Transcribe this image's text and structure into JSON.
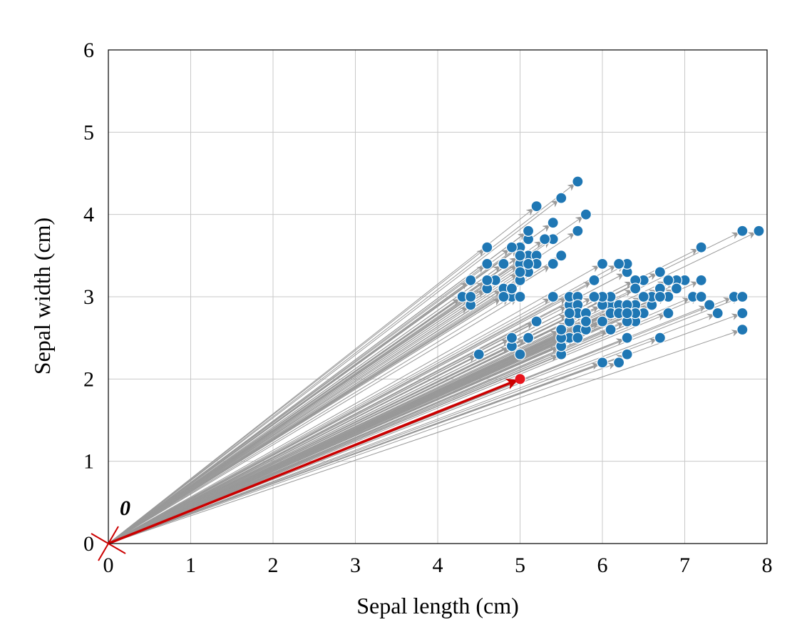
{
  "chart_data": {
    "type": "scatter",
    "xlabel": "Sepal length (cm)",
    "ylabel": "Sepal width (cm)",
    "xlim": [
      0,
      8
    ],
    "ylim": [
      0,
      6
    ],
    "xticks": [
      "0",
      "1",
      "2",
      "3",
      "4",
      "5",
      "6",
      "7",
      "8"
    ],
    "yticks": [
      "0",
      "1",
      "2",
      "3",
      "4",
      "5",
      "6"
    ],
    "grid": true,
    "origin_label": "0",
    "origin_marker": "x",
    "arrow_color": "#999999",
    "point_color": "#1f77b4",
    "highlight_color": "#cc0000",
    "highlight": {
      "x": 5.0,
      "y": 2.0
    },
    "points": [
      [
        5.1,
        3.5
      ],
      [
        4.9,
        3.0
      ],
      [
        4.7,
        3.2
      ],
      [
        4.6,
        3.1
      ],
      [
        5.0,
        3.6
      ],
      [
        5.4,
        3.9
      ],
      [
        4.6,
        3.4
      ],
      [
        5.0,
        3.4
      ],
      [
        4.4,
        2.9
      ],
      [
        4.9,
        3.1
      ],
      [
        5.4,
        3.7
      ],
      [
        4.8,
        3.4
      ],
      [
        4.8,
        3.0
      ],
      [
        4.3,
        3.0
      ],
      [
        5.8,
        4.0
      ],
      [
        5.7,
        4.4
      ],
      [
        5.4,
        3.9
      ],
      [
        5.1,
        3.5
      ],
      [
        5.7,
        3.8
      ],
      [
        5.1,
        3.8
      ],
      [
        5.4,
        3.4
      ],
      [
        5.1,
        3.7
      ],
      [
        4.6,
        3.6
      ],
      [
        5.1,
        3.3
      ],
      [
        4.8,
        3.4
      ],
      [
        5.0,
        3.0
      ],
      [
        5.0,
        3.4
      ],
      [
        5.2,
        3.5
      ],
      [
        5.2,
        3.4
      ],
      [
        4.7,
        3.2
      ],
      [
        4.8,
        3.1
      ],
      [
        5.4,
        3.4
      ],
      [
        5.2,
        4.1
      ],
      [
        5.5,
        4.2
      ],
      [
        4.9,
        3.1
      ],
      [
        5.0,
        3.2
      ],
      [
        5.5,
        3.5
      ],
      [
        4.9,
        3.6
      ],
      [
        4.4,
        3.0
      ],
      [
        5.1,
        3.4
      ],
      [
        5.0,
        3.5
      ],
      [
        4.5,
        2.3
      ],
      [
        4.4,
        3.2
      ],
      [
        5.0,
        3.5
      ],
      [
        5.1,
        3.8
      ],
      [
        4.8,
        3.0
      ],
      [
        5.1,
        3.8
      ],
      [
        4.6,
        3.2
      ],
      [
        5.3,
        3.7
      ],
      [
        5.0,
        3.3
      ],
      [
        7.0,
        3.2
      ],
      [
        6.4,
        3.2
      ],
      [
        6.9,
        3.1
      ],
      [
        5.5,
        2.3
      ],
      [
        6.5,
        2.8
      ],
      [
        5.7,
        2.8
      ],
      [
        6.3,
        3.3
      ],
      [
        4.9,
        2.4
      ],
      [
        6.6,
        2.9
      ],
      [
        5.2,
        2.7
      ],
      [
        5.0,
        2.0
      ],
      [
        5.9,
        3.0
      ],
      [
        6.0,
        2.2
      ],
      [
        6.1,
        2.9
      ],
      [
        5.6,
        2.9
      ],
      [
        6.7,
        3.1
      ],
      [
        5.6,
        3.0
      ],
      [
        5.8,
        2.7
      ],
      [
        6.2,
        2.2
      ],
      [
        5.6,
        2.5
      ],
      [
        5.9,
        3.2
      ],
      [
        6.1,
        2.8
      ],
      [
        6.3,
        2.5
      ],
      [
        6.1,
        2.8
      ],
      [
        6.4,
        2.9
      ],
      [
        6.6,
        3.0
      ],
      [
        6.8,
        2.8
      ],
      [
        6.7,
        3.0
      ],
      [
        6.0,
        2.9
      ],
      [
        5.7,
        2.6
      ],
      [
        5.5,
        2.4
      ],
      [
        5.5,
        2.4
      ],
      [
        5.8,
        2.7
      ],
      [
        6.0,
        2.7
      ],
      [
        5.4,
        3.0
      ],
      [
        6.0,
        3.4
      ],
      [
        6.7,
        3.1
      ],
      [
        6.3,
        2.3
      ],
      [
        5.6,
        3.0
      ],
      [
        5.5,
        2.5
      ],
      [
        5.5,
        2.6
      ],
      [
        6.1,
        3.0
      ],
      [
        5.8,
        2.6
      ],
      [
        5.0,
        2.3
      ],
      [
        5.6,
        2.7
      ],
      [
        5.7,
        3.0
      ],
      [
        5.7,
        2.9
      ],
      [
        6.2,
        2.9
      ],
      [
        5.1,
        2.5
      ],
      [
        5.7,
        2.8
      ],
      [
        6.3,
        3.3
      ],
      [
        5.8,
        2.7
      ],
      [
        7.1,
        3.0
      ],
      [
        6.3,
        2.9
      ],
      [
        6.5,
        3.0
      ],
      [
        7.6,
        3.0
      ],
      [
        4.9,
        2.5
      ],
      [
        7.3,
        2.9
      ],
      [
        6.7,
        2.5
      ],
      [
        7.2,
        3.6
      ],
      [
        6.5,
        3.2
      ],
      [
        6.4,
        2.7
      ],
      [
        6.8,
        3.0
      ],
      [
        5.7,
        2.5
      ],
      [
        5.8,
        2.8
      ],
      [
        6.4,
        3.2
      ],
      [
        6.5,
        3.0
      ],
      [
        7.7,
        3.8
      ],
      [
        7.7,
        2.6
      ],
      [
        6.0,
        2.2
      ],
      [
        6.9,
        3.2
      ],
      [
        5.6,
        2.8
      ],
      [
        7.7,
        2.8
      ],
      [
        6.3,
        2.7
      ],
      [
        6.7,
        3.3
      ],
      [
        7.2,
        3.2
      ],
      [
        6.2,
        2.8
      ],
      [
        6.1,
        3.0
      ],
      [
        6.4,
        2.8
      ],
      [
        7.2,
        3.0
      ],
      [
        7.4,
        2.8
      ],
      [
        7.9,
        3.8
      ],
      [
        6.4,
        2.8
      ],
      [
        6.3,
        2.8
      ],
      [
        6.1,
        2.6
      ],
      [
        7.7,
        3.0
      ],
      [
        6.3,
        3.4
      ],
      [
        6.4,
        3.1
      ],
      [
        6.0,
        3.0
      ],
      [
        6.9,
        3.1
      ],
      [
        6.7,
        3.1
      ],
      [
        6.9,
        3.1
      ],
      [
        5.8,
        2.7
      ],
      [
        6.8,
        3.2
      ],
      [
        6.7,
        3.3
      ],
      [
        6.7,
        3.0
      ],
      [
        6.3,
        2.5
      ],
      [
        6.5,
        3.0
      ],
      [
        6.2,
        3.4
      ],
      [
        5.9,
        3.0
      ]
    ]
  }
}
